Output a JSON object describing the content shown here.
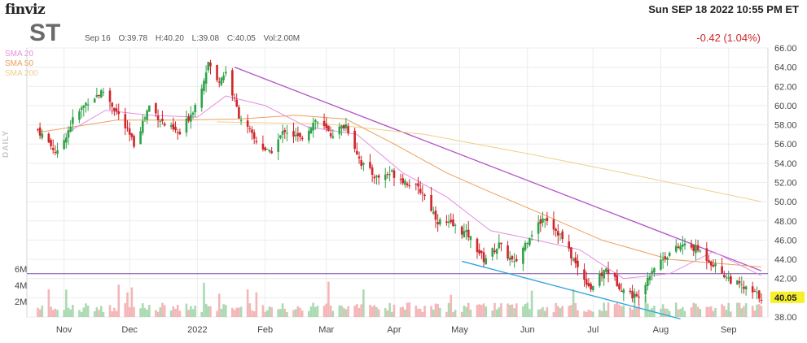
{
  "header": {
    "logo": "finviz",
    "datetime": "Sun SEP 18 2022 10:55 PM ET",
    "ticker": "ST",
    "date": "Sep 16",
    "open": "O:39.78",
    "high": "H:40.20",
    "low": "L:39.08",
    "close": "C:40.05",
    "volume": "Vol:2.00M",
    "change": "-0.42 (1.04%)",
    "timeframe": "DAILY"
  },
  "colors": {
    "up": "#2fa24a",
    "down": "#d0252b",
    "sma20": "#e58fe0",
    "sma50": "#eba15d",
    "sma200": "#f0cf8a",
    "resistance_line": "#b452c8",
    "support_line": "#2ba4dc",
    "horizontal_line": "#7b4ea8",
    "last_price_tag": "#f7ef2a"
  },
  "chart_data": {
    "type": "candlestick",
    "title": "ST",
    "ylim": [
      38,
      66
    ],
    "y_ticks": [
      "66.00",
      "64.00",
      "62.00",
      "60.00",
      "58.00",
      "56.00",
      "54.00",
      "52.00",
      "50.00",
      "48.00",
      "46.00",
      "44.00",
      "42.00",
      "40.00",
      "38.00"
    ],
    "x_ticks": [
      "Nov",
      "Dec",
      "2022",
      "Feb",
      "Mar",
      "Apr",
      "May",
      "Jun",
      "Jul",
      "Aug",
      "Sep"
    ],
    "volume_ticks": [
      "6M",
      "4M",
      "2M"
    ],
    "legend": [
      "SMA 20",
      "SMA 50",
      "SMA 200"
    ],
    "last_price": "40.05",
    "horizontal_line_value": 42.5,
    "trendlines": [
      {
        "name": "resistance",
        "from": {
          "date": "2022-01-18",
          "value": 64.0
        },
        "to": {
          "date": "2022-09-16",
          "value": 42.8
        }
      },
      {
        "name": "support",
        "from": {
          "date": "2022-05-02",
          "value": 43.8
        },
        "to": {
          "date": "2022-08-10",
          "value": 37.8
        }
      }
    ],
    "close_path": [
      [
        "2021-10-20",
        57.5
      ],
      [
        "2021-10-29",
        55.0
      ],
      [
        "2021-11-05",
        58.5
      ],
      [
        "2021-11-12",
        60.5
      ],
      [
        "2021-11-19",
        61.5
      ],
      [
        "2021-11-26",
        59.0
      ],
      [
        "2021-12-03",
        56.0
      ],
      [
        "2021-12-10",
        60.0
      ],
      [
        "2021-12-17",
        58.0
      ],
      [
        "2021-12-24",
        57.0
      ],
      [
        "2022-01-01",
        60.5
      ],
      [
        "2022-01-06",
        64.5
      ],
      [
        "2022-01-10",
        62.5
      ],
      [
        "2022-01-14",
        63.5
      ],
      [
        "2022-01-20",
        59.0
      ],
      [
        "2022-01-27",
        56.5
      ],
      [
        "2022-02-03",
        55.0
      ],
      [
        "2022-02-10",
        57.5
      ],
      [
        "2022-02-17",
        56.5
      ],
      [
        "2022-02-24",
        58.5
      ],
      [
        "2022-03-03",
        57.0
      ],
      [
        "2022-03-10",
        58.0
      ],
      [
        "2022-03-17",
        54.0
      ],
      [
        "2022-03-24",
        52.5
      ],
      [
        "2022-03-31",
        53.0
      ],
      [
        "2022-04-07",
        52.0
      ],
      [
        "2022-04-14",
        51.0
      ],
      [
        "2022-04-21",
        48.0
      ],
      [
        "2022-04-28",
        47.5
      ],
      [
        "2022-05-05",
        46.5
      ],
      [
        "2022-05-12",
        44.0
      ],
      [
        "2022-05-19",
        45.5
      ],
      [
        "2022-05-26",
        43.5
      ],
      [
        "2022-06-02",
        46.5
      ],
      [
        "2022-06-09",
        48.5
      ],
      [
        "2022-06-16",
        46.5
      ],
      [
        "2022-06-23",
        43.5
      ],
      [
        "2022-06-30",
        41.0
      ],
      [
        "2022-07-07",
        43.0
      ],
      [
        "2022-07-14",
        41.0
      ],
      [
        "2022-07-21",
        40.0
      ],
      [
        "2022-07-28",
        43.0
      ],
      [
        "2022-08-04",
        44.5
      ],
      [
        "2022-08-11",
        45.5
      ],
      [
        "2022-08-18",
        45.0
      ],
      [
        "2022-08-25",
        43.5
      ],
      [
        "2022-09-01",
        42.0
      ],
      [
        "2022-09-08",
        41.0
      ],
      [
        "2022-09-16",
        40.05
      ]
    ],
    "sma20_path": [
      [
        "2021-11-01",
        57.0
      ],
      [
        "2021-11-20",
        59.5
      ],
      [
        "2021-12-10",
        59.0
      ],
      [
        "2022-01-01",
        58.8
      ],
      [
        "2022-01-14",
        61.0
      ],
      [
        "2022-02-01",
        60.0
      ],
      [
        "2022-02-20",
        57.8
      ],
      [
        "2022-03-15",
        57.0
      ],
      [
        "2022-04-05",
        53.0
      ],
      [
        "2022-04-25",
        50.5
      ],
      [
        "2022-05-15",
        47.0
      ],
      [
        "2022-06-05",
        46.0
      ],
      [
        "2022-06-25",
        45.0
      ],
      [
        "2022-07-15",
        42.0
      ],
      [
        "2022-08-05",
        42.5
      ],
      [
        "2022-08-25",
        44.8
      ],
      [
        "2022-09-16",
        42.3
      ]
    ],
    "sma50_path": [
      [
        "2021-10-20",
        57.2
      ],
      [
        "2021-11-25",
        58.5
      ],
      [
        "2021-12-25",
        58.5
      ],
      [
        "2022-01-20",
        58.6
      ],
      [
        "2022-02-15",
        59.0
      ],
      [
        "2022-03-10",
        58.6
      ],
      [
        "2022-04-01",
        56.0
      ],
      [
        "2022-04-25",
        53.0
      ],
      [
        "2022-05-15",
        51.0
      ],
      [
        "2022-06-10",
        48.5
      ],
      [
        "2022-07-05",
        46.0
      ],
      [
        "2022-08-05",
        44.0
      ],
      [
        "2022-09-16",
        43.2
      ]
    ],
    "sma200_path": [
      [
        "2022-01-10",
        58.3
      ],
      [
        "2022-03-01",
        58.1
      ],
      [
        "2022-04-15",
        57.0
      ],
      [
        "2022-06-01",
        55.0
      ],
      [
        "2022-07-15",
        53.0
      ],
      [
        "2022-09-16",
        50.0
      ]
    ]
  }
}
